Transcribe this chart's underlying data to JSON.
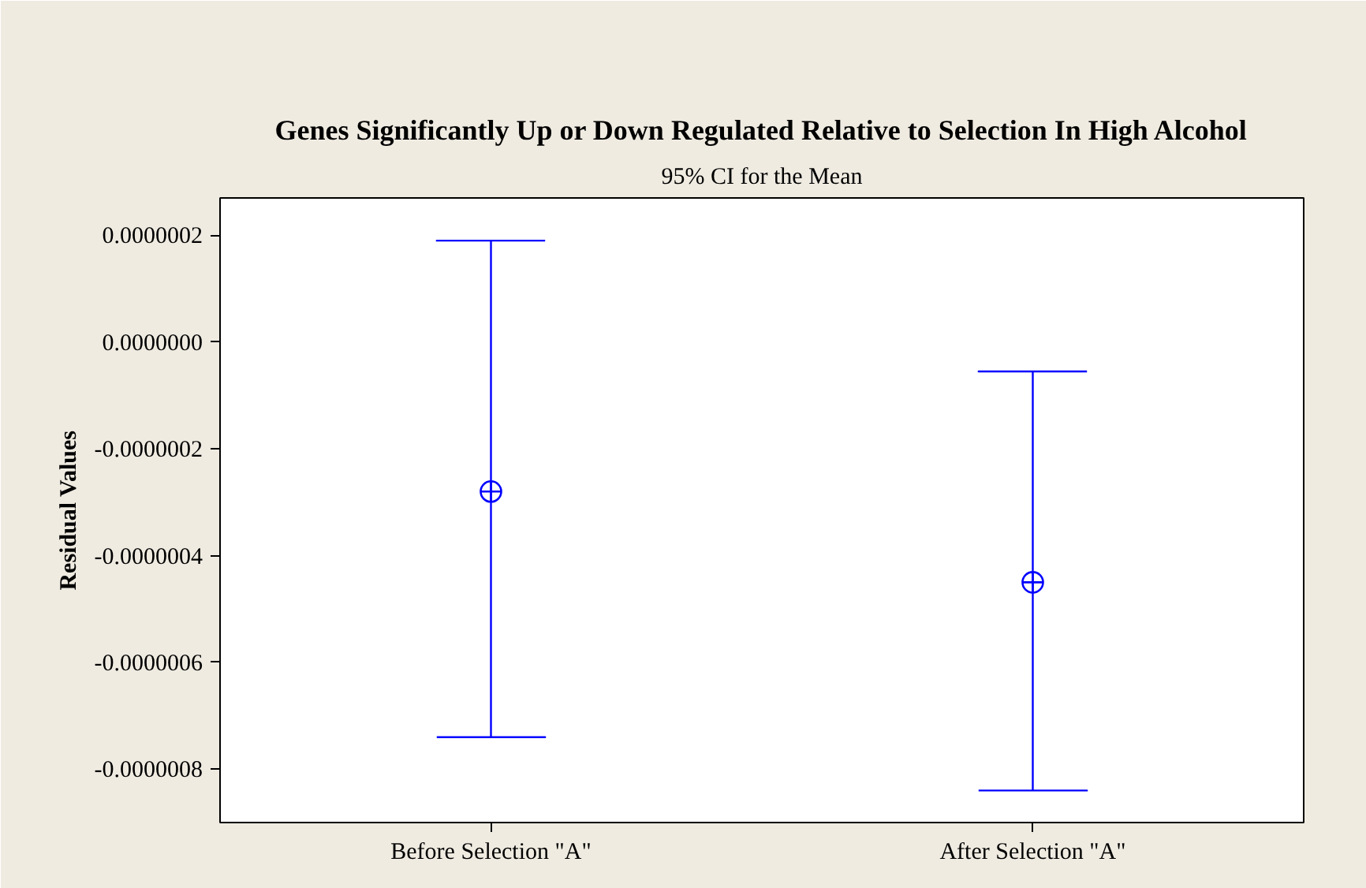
{
  "chart_data": {
    "type": "scatter",
    "title": "Genes Significantly Up or Down Regulated Relative to Selection In High Alcohol",
    "subtitle": "95% CI for the Mean",
    "ylabel": "Residual Values",
    "categories": [
      "Before Selection \"A\"",
      "After Selection \"A\""
    ],
    "series": [
      {
        "color": "#0000ff",
        "values": [
          -2.8e-07,
          -4.5e-07
        ],
        "errors": [
          [
            -7.4e-07,
            1.9e-07
          ],
          [
            -8.4e-07,
            -5.5e-08
          ]
        ]
      }
    ],
    "marker": "circle",
    "ylim": [
      -9e-07,
      2.7e-07
    ],
    "yticks": [
      {
        "value": -8e-07,
        "label": "-0.0000008"
      },
      {
        "value": -6e-07,
        "label": "-0.0000006"
      },
      {
        "value": -4e-07,
        "label": "-0.0000004"
      },
      {
        "value": -2e-07,
        "label": "-0.0000002"
      },
      {
        "value": 0,
        "label": "0.0000000"
      },
      {
        "value": 2e-07,
        "label": "0.0000002"
      }
    ],
    "grid": false
  }
}
